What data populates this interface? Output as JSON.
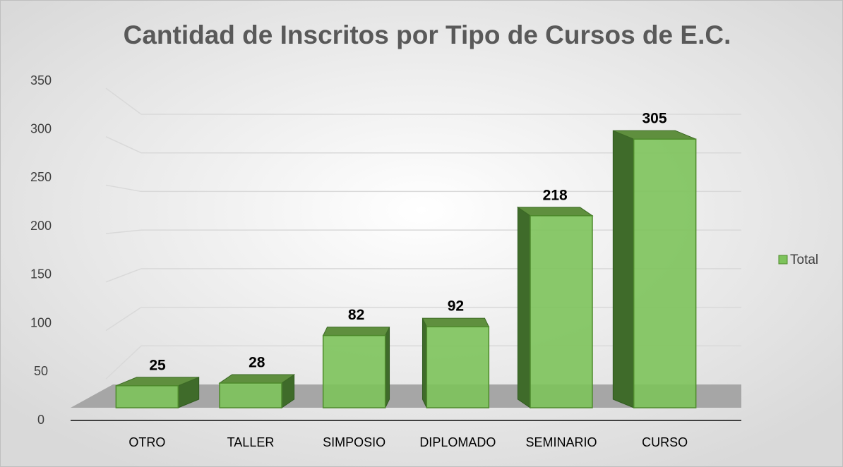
{
  "chart_data": {
    "type": "bar3d",
    "title": "Cantidad de Inscritos por Tipo de Cursos de E.C.",
    "categories": [
      "OTRO",
      "TALLER",
      "SIMPOSIO",
      "DIPLOMADO",
      "SEMINARIO",
      "CURSO"
    ],
    "series": [
      {
        "name": "Total",
        "color": "#7dc35b",
        "values": [
          25,
          28,
          82,
          92,
          218,
          305
        ]
      }
    ],
    "ylim": [
      0,
      350
    ],
    "yticks": [
      0,
      50,
      100,
      150,
      200,
      250,
      300,
      350
    ],
    "grid": true,
    "legend": "right"
  }
}
